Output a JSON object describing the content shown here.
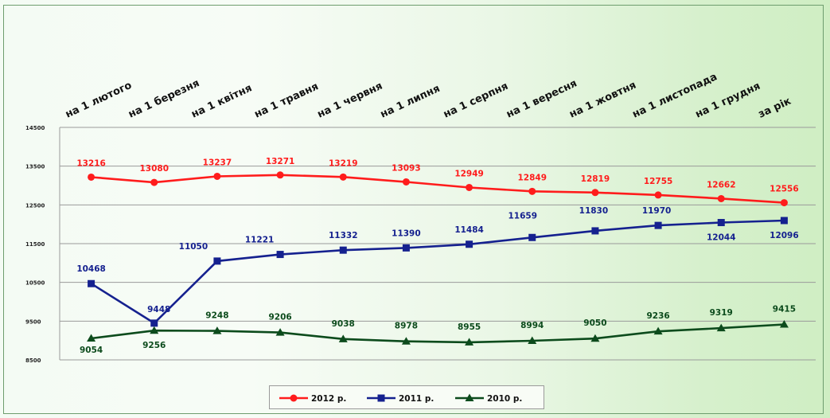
{
  "chart_data": {
    "type": "line",
    "categories": [
      "на 1 лютого",
      "на 1 березня",
      "на 1 квітня",
      "на 1 травня",
      "на 1 червня",
      "на 1 липня",
      "на 1 серпня",
      "на 1 вересня",
      "на 1 жовтня",
      "на 1 листопада",
      "на 1 грудня",
      "за рік"
    ],
    "series": [
      {
        "name": "2012 р.",
        "color": "#ff1c1c",
        "marker": "circle",
        "values": [
          13216,
          13080,
          13237,
          13271,
          13219,
          13093,
          12949,
          12849,
          12819,
          12755,
          12662,
          12556
        ]
      },
      {
        "name": "2011 р.",
        "color": "#15218f",
        "marker": "square",
        "values": [
          10468,
          9448,
          11050,
          11221,
          11332,
          11390,
          11484,
          11659,
          11830,
          11970,
          12044,
          12096
        ]
      },
      {
        "name": "2010 р.",
        "color": "#0c4b1c",
        "marker": "triangle",
        "values": [
          9054,
          9256,
          9248,
          9206,
          9038,
          8978,
          8955,
          8994,
          9050,
          9236,
          9319,
          9415
        ]
      }
    ],
    "y_ticks": [
      "14500",
      "13500",
      "12500",
      "11500",
      "10500",
      "9500",
      "8500"
    ],
    "ylim": [
      8500,
      14500
    ],
    "legend_position": "bottom",
    "grid": true
  }
}
